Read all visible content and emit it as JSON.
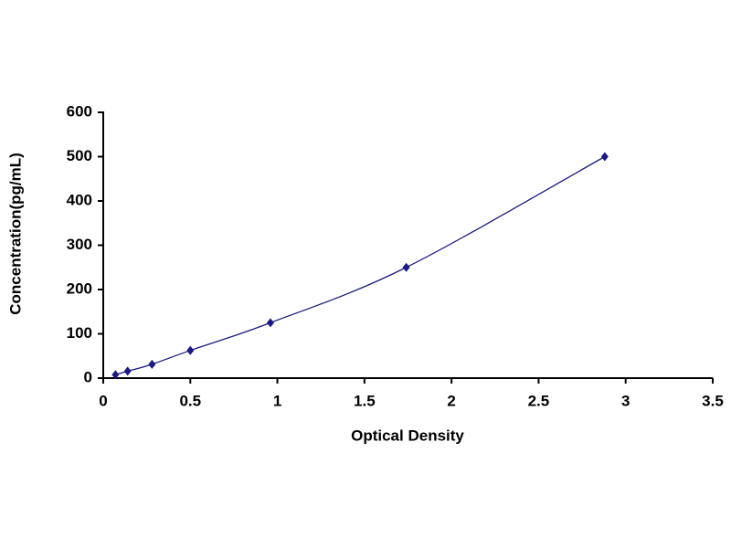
{
  "chart_data": {
    "type": "scatter",
    "x_label": "Optical Density",
    "y_label": "Concentration(pg/mL)",
    "series": [
      {
        "color": "#1a1a80",
        "x": [
          0.07,
          0.14,
          0.28,
          0.5,
          0.96,
          1.74,
          2.88
        ],
        "values": [
          7.8,
          15.6,
          31.25,
          62.5,
          125,
          250,
          500
        ]
      }
    ],
    "smooth_line": true,
    "xlim": [
      0,
      3.5
    ],
    "xticks": [
      0,
      0.5,
      1,
      1.5,
      2,
      2.5,
      3,
      3.5
    ],
    "ylim": [
      0,
      600
    ],
    "yticks": [
      0,
      100,
      200,
      300,
      400,
      500,
      600
    ]
  }
}
